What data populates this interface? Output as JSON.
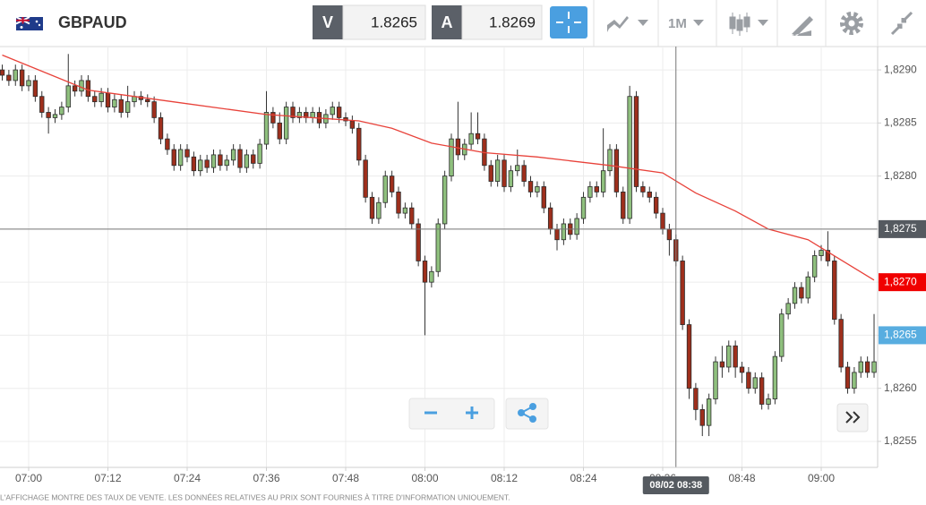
{
  "toolbar": {
    "symbol": "GBPAUD",
    "sell_label": "V",
    "sell_price": "1.8265",
    "buy_label": "A",
    "buy_price": "1.8269",
    "timeframe": "1M"
  },
  "chart_data": {
    "type": "candlestick",
    "x": [
      416,
      417,
      418,
      419,
      420,
      421,
      422,
      423,
      424,
      425,
      426,
      427,
      428,
      429,
      430,
      431,
      432,
      433,
      434,
      435,
      436,
      437,
      438,
      439,
      440,
      441,
      442,
      443,
      444,
      445,
      446,
      447,
      448,
      449,
      450,
      451,
      452,
      453,
      454,
      455,
      456,
      457,
      458,
      459,
      460,
      461,
      462,
      463,
      464,
      465,
      466,
      467,
      468,
      469,
      470,
      471,
      472,
      473,
      474,
      475,
      476,
      477,
      478,
      479,
      480,
      481,
      482,
      483,
      484,
      485,
      486,
      487,
      488,
      489,
      490,
      491,
      492,
      493,
      494,
      495,
      496,
      497,
      498,
      499,
      500,
      501,
      502,
      503,
      504,
      505,
      506,
      507,
      508,
      509,
      510,
      511,
      512,
      513,
      514,
      515,
      516,
      517,
      518,
      519,
      520,
      521,
      522,
      523,
      524,
      525,
      526,
      527,
      528,
      529,
      530,
      531,
      532,
      533,
      534,
      535,
      536,
      537,
      538,
      539,
      540,
      541,
      542,
      543,
      544,
      545,
      546,
      547,
      548
    ],
    "open": [
      1.829,
      1.82895,
      1.8289,
      1.829,
      1.82885,
      1.8289,
      1.82875,
      1.8286,
      1.82855,
      1.82858,
      1.82865,
      1.82885,
      1.8288,
      1.8289,
      1.82875,
      1.8287,
      1.82878,
      1.82865,
      1.82872,
      1.8286,
      1.8287,
      1.82875,
      1.82872,
      1.8287,
      1.82855,
      1.82835,
      1.82825,
      1.8281,
      1.82825,
      1.82818,
      1.82805,
      1.82815,
      1.82808,
      1.8282,
      1.8281,
      1.82815,
      1.82825,
      1.82808,
      1.8282,
      1.82812,
      1.8283,
      1.8286,
      1.8285,
      1.82835,
      1.82865,
      1.82855,
      1.8286,
      1.82855,
      1.8286,
      1.8285,
      1.82858,
      1.82865,
      1.82855,
      1.82852,
      1.82845,
      1.82815,
      1.8278,
      1.8276,
      1.82775,
      1.828,
      1.82785,
      1.82765,
      1.8277,
      1.82755,
      1.8272,
      1.827,
      1.8271,
      1.82755,
      1.828,
      1.82835,
      1.8282,
      1.8283,
      1.8284,
      1.82835,
      1.8281,
      1.82795,
      1.82815,
      1.8279,
      1.82805,
      1.8281,
      1.82795,
      1.82785,
      1.8279,
      1.8277,
      1.8275,
      1.8274,
      1.82755,
      1.82745,
      1.8276,
      1.8278,
      1.8279,
      1.82785,
      1.82805,
      1.82825,
      1.82785,
      1.8276,
      1.82875,
      1.8279,
      1.82785,
      1.8278,
      1.82765,
      1.8275,
      1.8274,
      1.8272,
      1.8266,
      1.826,
      1.8258,
      1.82565,
      1.8259,
      1.82625,
      1.8262,
      1.8264,
      1.8262,
      1.82615,
      1.826,
      1.8261,
      1.82585,
      1.8259,
      1.8263,
      1.8267,
      1.8268,
      1.82695,
      1.82685,
      1.82705,
      1.82725,
      1.8273,
      1.8272,
      1.82665,
      1.8262,
      1.826,
      1.82615,
      1.82625,
      1.82615
    ],
    "high": [
      1.82905,
      1.829,
      1.82905,
      1.82905,
      1.82895,
      1.82895,
      1.8288,
      1.82865,
      1.82863,
      1.8287,
      1.82915,
      1.8289,
      1.82895,
      1.82895,
      1.8288,
      1.82883,
      1.82883,
      1.82877,
      1.82877,
      1.82885,
      1.8288,
      1.8288,
      1.82877,
      1.82875,
      1.8286,
      1.8284,
      1.8283,
      1.8283,
      1.8283,
      1.82823,
      1.8282,
      1.8282,
      1.82825,
      1.82825,
      1.8282,
      1.8283,
      1.8283,
      1.82825,
      1.82825,
      1.82835,
      1.8288,
      1.82865,
      1.8286,
      1.8287,
      1.8287,
      1.82865,
      1.82865,
      1.82865,
      1.82865,
      1.82863,
      1.8287,
      1.8287,
      1.8286,
      1.82857,
      1.8285,
      1.8282,
      1.82785,
      1.8278,
      1.82805,
      1.82805,
      1.8279,
      1.82775,
      1.82775,
      1.8276,
      1.82725,
      1.82715,
      1.8276,
      1.82805,
      1.8284,
      1.8287,
      1.82835,
      1.8286,
      1.8286,
      1.8284,
      1.82815,
      1.8282,
      1.8282,
      1.8281,
      1.82825,
      1.82815,
      1.828,
      1.82795,
      1.82795,
      1.82775,
      1.82755,
      1.8276,
      1.8276,
      1.82765,
      1.82785,
      1.82795,
      1.82795,
      1.82845,
      1.8283,
      1.8283,
      1.8279,
      1.82885,
      1.8288,
      1.82795,
      1.8279,
      1.82785,
      1.8277,
      1.82755,
      1.82745,
      1.82725,
      1.82665,
      1.82605,
      1.82585,
      1.82595,
      1.8263,
      1.8264,
      1.82645,
      1.82645,
      1.82625,
      1.8262,
      1.82615,
      1.82615,
      1.82595,
      1.82635,
      1.82675,
      1.82685,
      1.827,
      1.827,
      1.8271,
      1.8273,
      1.82735,
      1.82748,
      1.82725,
      1.8267,
      1.82625,
      1.8262,
      1.8263,
      1.8263,
      1.8267
    ],
    "low": [
      1.8289,
      1.82885,
      1.82885,
      1.8288,
      1.8288,
      1.8287,
      1.82855,
      1.8284,
      1.8285,
      1.82853,
      1.8286,
      1.82875,
      1.82875,
      1.8287,
      1.82865,
      1.82865,
      1.8286,
      1.8286,
      1.82855,
      1.82855,
      1.82865,
      1.82867,
      1.82865,
      1.8285,
      1.8283,
      1.8282,
      1.82805,
      1.82805,
      1.82813,
      1.828,
      1.828,
      1.82803,
      1.82803,
      1.82805,
      1.82805,
      1.8281,
      1.82803,
      1.82803,
      1.82807,
      1.82807,
      1.82825,
      1.82845,
      1.8283,
      1.8283,
      1.8285,
      1.8285,
      1.8285,
      1.8285,
      1.82845,
      1.82845,
      1.82853,
      1.8285,
      1.82847,
      1.8284,
      1.8281,
      1.82775,
      1.82755,
      1.82755,
      1.8277,
      1.8278,
      1.8276,
      1.8276,
      1.8275,
      1.82715,
      1.8265,
      1.82695,
      1.82705,
      1.8275,
      1.82795,
      1.82815,
      1.82815,
      1.82825,
      1.8283,
      1.82805,
      1.8279,
      1.8279,
      1.82785,
      1.82785,
      1.828,
      1.8279,
      1.8278,
      1.8278,
      1.82765,
      1.82745,
      1.8273,
      1.82735,
      1.8274,
      1.8274,
      1.82755,
      1.82775,
      1.8278,
      1.8278,
      1.828,
      1.8278,
      1.82755,
      1.82755,
      1.82785,
      1.8278,
      1.82775,
      1.8276,
      1.82745,
      1.82725,
      1.82715,
      1.82655,
      1.8259,
      1.8257,
      1.82555,
      1.82555,
      1.82585,
      1.8261,
      1.82615,
      1.8261,
      1.82605,
      1.82595,
      1.82595,
      1.8258,
      1.8258,
      1.82585,
      1.82625,
      1.82665,
      1.82675,
      1.8268,
      1.8268,
      1.827,
      1.8272,
      1.82715,
      1.8266,
      1.82615,
      1.82595,
      1.82595,
      1.8261,
      1.8261,
      1.8261
    ],
    "close": [
      1.82895,
      1.8289,
      1.829,
      1.82885,
      1.8289,
      1.82875,
      1.8286,
      1.82855,
      1.82858,
      1.82865,
      1.82885,
      1.8288,
      1.8289,
      1.82875,
      1.8287,
      1.82878,
      1.82865,
      1.82872,
      1.8286,
      1.8287,
      1.82875,
      1.82872,
      1.8287,
      1.82855,
      1.82835,
      1.82825,
      1.8281,
      1.82825,
      1.82818,
      1.82805,
      1.82815,
      1.82808,
      1.8282,
      1.8281,
      1.82815,
      1.82825,
      1.82808,
      1.8282,
      1.82812,
      1.8283,
      1.8286,
      1.8285,
      1.82835,
      1.82865,
      1.82855,
      1.8286,
      1.82855,
      1.8286,
      1.8285,
      1.82858,
      1.82865,
      1.82855,
      1.82852,
      1.82845,
      1.82815,
      1.8278,
      1.8276,
      1.82775,
      1.828,
      1.82785,
      1.82765,
      1.8277,
      1.82755,
      1.8272,
      1.827,
      1.8271,
      1.82755,
      1.828,
      1.82835,
      1.8282,
      1.8283,
      1.8284,
      1.82835,
      1.8281,
      1.82795,
      1.82815,
      1.8279,
      1.82805,
      1.8281,
      1.82795,
      1.82785,
      1.8279,
      1.8277,
      1.8275,
      1.8274,
      1.82755,
      1.82745,
      1.8276,
      1.8278,
      1.8279,
      1.82785,
      1.82805,
      1.82825,
      1.82785,
      1.8276,
      1.82875,
      1.8279,
      1.82785,
      1.8278,
      1.82765,
      1.8275,
      1.8274,
      1.8272,
      1.8266,
      1.826,
      1.8258,
      1.82565,
      1.8259,
      1.82625,
      1.8262,
      1.8264,
      1.8262,
      1.82615,
      1.826,
      1.8261,
      1.82585,
      1.8259,
      1.8263,
      1.8267,
      1.8268,
      1.82695,
      1.82685,
      1.82705,
      1.82725,
      1.8273,
      1.8272,
      1.82665,
      1.8262,
      1.826,
      1.82615,
      1.82625,
      1.82615,
      1.82625
    ],
    "up_color": "#8fc07e",
    "down_color": "#9e2f1c",
    "moving_average": {
      "color": "#e8423a",
      "x": [
        416,
        429,
        443,
        456,
        470,
        475,
        481,
        489,
        497,
        508,
        516,
        521,
        527,
        532,
        538,
        543,
        548
      ],
      "values": [
        1.82914,
        1.82881,
        1.82869,
        1.82858,
        1.82852,
        1.82845,
        1.82831,
        1.82822,
        1.82818,
        1.8281,
        1.82803,
        1.82784,
        1.82767,
        1.8275,
        1.8274,
        1.82721,
        1.82702
      ]
    },
    "xlim": [
      415.66,
      548.54
    ],
    "ylim": [
      1.825255,
      1.82922
    ],
    "xticks": [
      {
        "value": 420,
        "label": "07:00"
      },
      {
        "value": 432,
        "label": "07:12"
      },
      {
        "value": 444,
        "label": "07:24"
      },
      {
        "value": 456,
        "label": "07:36"
      },
      {
        "value": 468,
        "label": "07:48"
      },
      {
        "value": 480,
        "label": "08:00"
      },
      {
        "value": 492,
        "label": "08:12"
      },
      {
        "value": 504,
        "label": "08:24"
      },
      {
        "value": 516,
        "label": "08:36"
      },
      {
        "value": 528,
        "label": "08:48"
      },
      {
        "value": 540,
        "label": "09:00"
      }
    ],
    "yticks": [
      {
        "value": 1.8255,
        "label": "1,8255"
      },
      {
        "value": 1.826,
        "label": "1,8260"
      },
      {
        "value": 1.8265,
        "label": "1,8265"
      },
      {
        "value": 1.827,
        "label": "1,8270"
      },
      {
        "value": 1.8275,
        "label": "1,8275"
      },
      {
        "value": 1.828,
        "label": "1,8280"
      },
      {
        "value": 1.8285,
        "label": "1,8285"
      },
      {
        "value": 1.829,
        "label": "1,8290"
      }
    ],
    "grid": true,
    "price_markers": [
      {
        "value": 1.8275,
        "label": "1,8275",
        "color": "#555a60"
      },
      {
        "value": 1.827,
        "label": "1,8270",
        "color": "#f00000"
      },
      {
        "value": 1.8265,
        "label": "1,8265",
        "color": "#58ade0"
      }
    ],
    "crosshair": {
      "x": 518,
      "y": 1.8275,
      "x_label": "08/02 08:38"
    }
  },
  "disclaimer": "L'AFFICHAGE MONTRE DES TAUX DE VENTE. LES DONNÉES RELATIVES AU PRIX SONT FOURNIES À TITRE D'INFORMATION UNIQUEMENT."
}
